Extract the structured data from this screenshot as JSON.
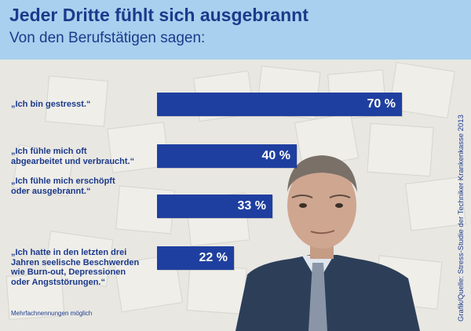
{
  "header": {
    "title": "Jeder Dritte fühlt sich ausgebrannt",
    "subtitle": "Von den Berufstätigen sagen:"
  },
  "chart_data": {
    "type": "bar",
    "orientation": "horizontal",
    "title": "Jeder Dritte fühlt sich ausgebrannt",
    "subtitle": "Von den Berufstätigen sagen:",
    "unit": "%",
    "xlim": [
      0,
      100
    ],
    "categories": [
      [
        "„Ich bin gestresst.“"
      ],
      [
        "„Ich fühle mich oft",
        "abgearbeitet und verbraucht.“"
      ],
      [
        "„Ich fühle mich erschöpft",
        "oder ausgebrannt.“"
      ],
      [
        "„Ich hatte in den letzten drei",
        "Jahren seelische Beschwerden",
        "wie Burn-out, Depressionen",
        "oder Angststörungen.“"
      ]
    ],
    "values": [
      70,
      40,
      33,
      22
    ],
    "value_labels": [
      "70 %",
      "40 %",
      "33 %",
      "22 %"
    ]
  },
  "footnote": "Mehrfachnennungen möglich",
  "source": "Grafik/Quelle: Stress-Studie der Techniker Krankenkasse 2013",
  "colors": {
    "header_bg": "#a9d0ee",
    "title": "#1c3a8c",
    "bar": "#1f3fa0",
    "bar_text": "#ffffff"
  }
}
